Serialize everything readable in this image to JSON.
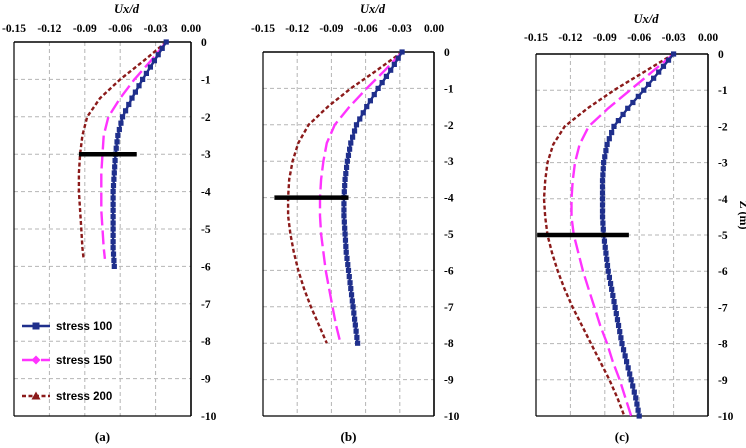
{
  "chart_data": [
    {
      "type": "line",
      "panel": "(a)",
      "xlabel": "Ux/d",
      "ylabel": "",
      "xlim": [
        -0.15,
        0.0
      ],
      "ylim": [
        -10,
        0
      ],
      "xticks": [
        "-0.15",
        "-0.12",
        "-0.09",
        "-0.06",
        "-0.03",
        "0.00"
      ],
      "yticks": [
        "0",
        "-1",
        "-2",
        "-3",
        "-4",
        "-5",
        "-6",
        "-7",
        "-8",
        "-9",
        "-10"
      ],
      "grid": true,
      "legend": "bottom-left",
      "marker_depth": -3,
      "marker_range": [
        -0.095,
        -0.046
      ],
      "series": [
        {
          "name": "stress 100",
          "z": [
            0,
            -0.5,
            -1,
            -1.5,
            -2,
            -2.5,
            -3,
            -3.5,
            -4,
            -4.5,
            -5,
            -5.5,
            -6
          ],
          "ux": [
            -0.021,
            -0.031,
            -0.041,
            -0.05,
            -0.058,
            -0.062,
            -0.064,
            -0.065,
            -0.066,
            -0.066,
            -0.066,
            -0.066,
            -0.065
          ]
        },
        {
          "name": "stress 150",
          "z": [
            0,
            -0.5,
            -1,
            -1.5,
            -2,
            -2.5,
            -3,
            -3.5,
            -4,
            -4.5,
            -5,
            -5.5,
            -5.8
          ],
          "ux": [
            -0.021,
            -0.034,
            -0.048,
            -0.06,
            -0.07,
            -0.074,
            -0.075,
            -0.076,
            -0.076,
            -0.076,
            -0.075,
            -0.074,
            -0.073
          ]
        },
        {
          "name": "stress 200",
          "z": [
            0,
            -0.5,
            -1,
            -1.5,
            -2,
            -2.5,
            -3,
            -3.5,
            -4,
            -4.5,
            -5,
            -5.5,
            -5.8
          ],
          "ux": [
            -0.021,
            -0.04,
            -0.06,
            -0.077,
            -0.088,
            -0.092,
            -0.094,
            -0.095,
            -0.095,
            -0.094,
            -0.093,
            -0.092,
            -0.091
          ]
        }
      ]
    },
    {
      "type": "line",
      "panel": "(b)",
      "xlabel": "Ux/d",
      "ylabel": "",
      "xlim": [
        -0.15,
        0.0
      ],
      "ylim": [
        -10,
        0
      ],
      "xticks": [
        "-0.15",
        "-0.12",
        "-0.09",
        "-0.06",
        "-0.03",
        "0.00"
      ],
      "yticks": [
        "0",
        "-1",
        "-2",
        "-3",
        "-4",
        "-5",
        "-6",
        "-7",
        "-8",
        "-9",
        "-10"
      ],
      "grid": true,
      "marker_depth": -4,
      "marker_range": [
        -0.14,
        -0.075
      ],
      "series": [
        {
          "name": "stress 100",
          "z": [
            0,
            -0.5,
            -1,
            -1.5,
            -2,
            -2.5,
            -3,
            -3.5,
            -4,
            -4.5,
            -5,
            -5.5,
            -6,
            -6.5,
            -7,
            -7.5,
            -8
          ],
          "ux": [
            -0.028,
            -0.038,
            -0.049,
            -0.059,
            -0.068,
            -0.073,
            -0.076,
            -0.078,
            -0.079,
            -0.079,
            -0.078,
            -0.077,
            -0.075,
            -0.073,
            -0.071,
            -0.069,
            -0.067
          ]
        },
        {
          "name": "stress 150",
          "z": [
            0,
            -0.5,
            -1,
            -1.5,
            -2,
            -2.5,
            -3,
            -3.5,
            -4,
            -4.5,
            -5,
            -5.5,
            -6,
            -6.5,
            -7,
            -7.5,
            -8
          ],
          "ux": [
            -0.028,
            -0.043,
            -0.059,
            -0.074,
            -0.087,
            -0.094,
            -0.097,
            -0.099,
            -0.1,
            -0.1,
            -0.099,
            -0.097,
            -0.095,
            -0.092,
            -0.089,
            -0.086,
            -0.082
          ]
        },
        {
          "name": "stress 200",
          "z": [
            0,
            -0.5,
            -1,
            -1.5,
            -2,
            -2.5,
            -3,
            -3.5,
            -4,
            -4.5,
            -5,
            -5.5,
            -6,
            -6.5,
            -7,
            -7.5,
            -8
          ],
          "ux": [
            -0.028,
            -0.05,
            -0.073,
            -0.093,
            -0.11,
            -0.119,
            -0.124,
            -0.127,
            -0.128,
            -0.128,
            -0.126,
            -0.123,
            -0.119,
            -0.114,
            -0.108,
            -0.101,
            -0.094
          ]
        }
      ]
    },
    {
      "type": "line",
      "panel": "(c)",
      "xlabel": "Ux/d",
      "ylabel": "Z (m)",
      "xlim": [
        -0.15,
        0.0
      ],
      "ylim": [
        -10,
        0
      ],
      "xticks": [
        "-0.15",
        "-0.12",
        "-0.09",
        "-0.06",
        "-0.03",
        "0.00"
      ],
      "yticks": [
        "0",
        "-1",
        "-2",
        "-3",
        "-4",
        "-5",
        "-6",
        "-7",
        "-8",
        "-9",
        "-10"
      ],
      "grid": true,
      "marker_depth": -5,
      "marker_range": [
        -0.149,
        -0.069
      ],
      "series": [
        {
          "name": "stress 100",
          "z": [
            0,
            -0.5,
            -1,
            -1.5,
            -2,
            -2.5,
            -3,
            -3.5,
            -4,
            -4.5,
            -5,
            -5.5,
            -6,
            -6.5,
            -7,
            -7.5,
            -8,
            -8.5,
            -9,
            -9.5,
            -10
          ],
          "ux": [
            -0.03,
            -0.043,
            -0.056,
            -0.07,
            -0.082,
            -0.088,
            -0.091,
            -0.092,
            -0.092,
            -0.092,
            -0.091,
            -0.089,
            -0.087,
            -0.084,
            -0.081,
            -0.078,
            -0.075,
            -0.071,
            -0.067,
            -0.063,
            -0.06
          ]
        },
        {
          "name": "stress 150",
          "z": [
            0,
            -0.5,
            -1,
            -1.5,
            -2,
            -2.5,
            -3,
            -3.5,
            -4,
            -4.5,
            -5,
            -5.5,
            -6,
            -6.5,
            -7,
            -7.5,
            -8,
            -8.5,
            -9,
            -9.5,
            -10
          ],
          "ux": [
            -0.03,
            -0.049,
            -0.068,
            -0.087,
            -0.104,
            -0.112,
            -0.116,
            -0.118,
            -0.119,
            -0.119,
            -0.117,
            -0.113,
            -0.109,
            -0.104,
            -0.099,
            -0.094,
            -0.088,
            -0.083,
            -0.077,
            -0.072,
            -0.067
          ]
        },
        {
          "name": "stress 200",
          "z": [
            0,
            -0.5,
            -1,
            -1.5,
            -2,
            -2.5,
            -3,
            -3.5,
            -4,
            -4.5,
            -5,
            -5.5,
            -6,
            -6.5,
            -7,
            -7.5,
            -8,
            -8.5,
            -9,
            -9.5,
            -10
          ],
          "ux": [
            -0.03,
            -0.056,
            -0.082,
            -0.105,
            -0.125,
            -0.135,
            -0.14,
            -0.142,
            -0.143,
            -0.142,
            -0.14,
            -0.136,
            -0.131,
            -0.125,
            -0.118,
            -0.11,
            -0.102,
            -0.094,
            -0.086,
            -0.079,
            -0.073
          ]
        }
      ]
    }
  ],
  "legend": {
    "items": [
      "stress 100",
      "stress 150",
      "stress 200"
    ]
  },
  "captions": [
    "(a)",
    "(b)",
    "(c)"
  ],
  "colors": {
    "stress 100": "#1f2f8c",
    "stress 150": "#ff33ff",
    "stress 200": "#8b1a1a",
    "marker_bar": "#000000",
    "grid": "#b5b5b5",
    "frame": "#000000"
  }
}
